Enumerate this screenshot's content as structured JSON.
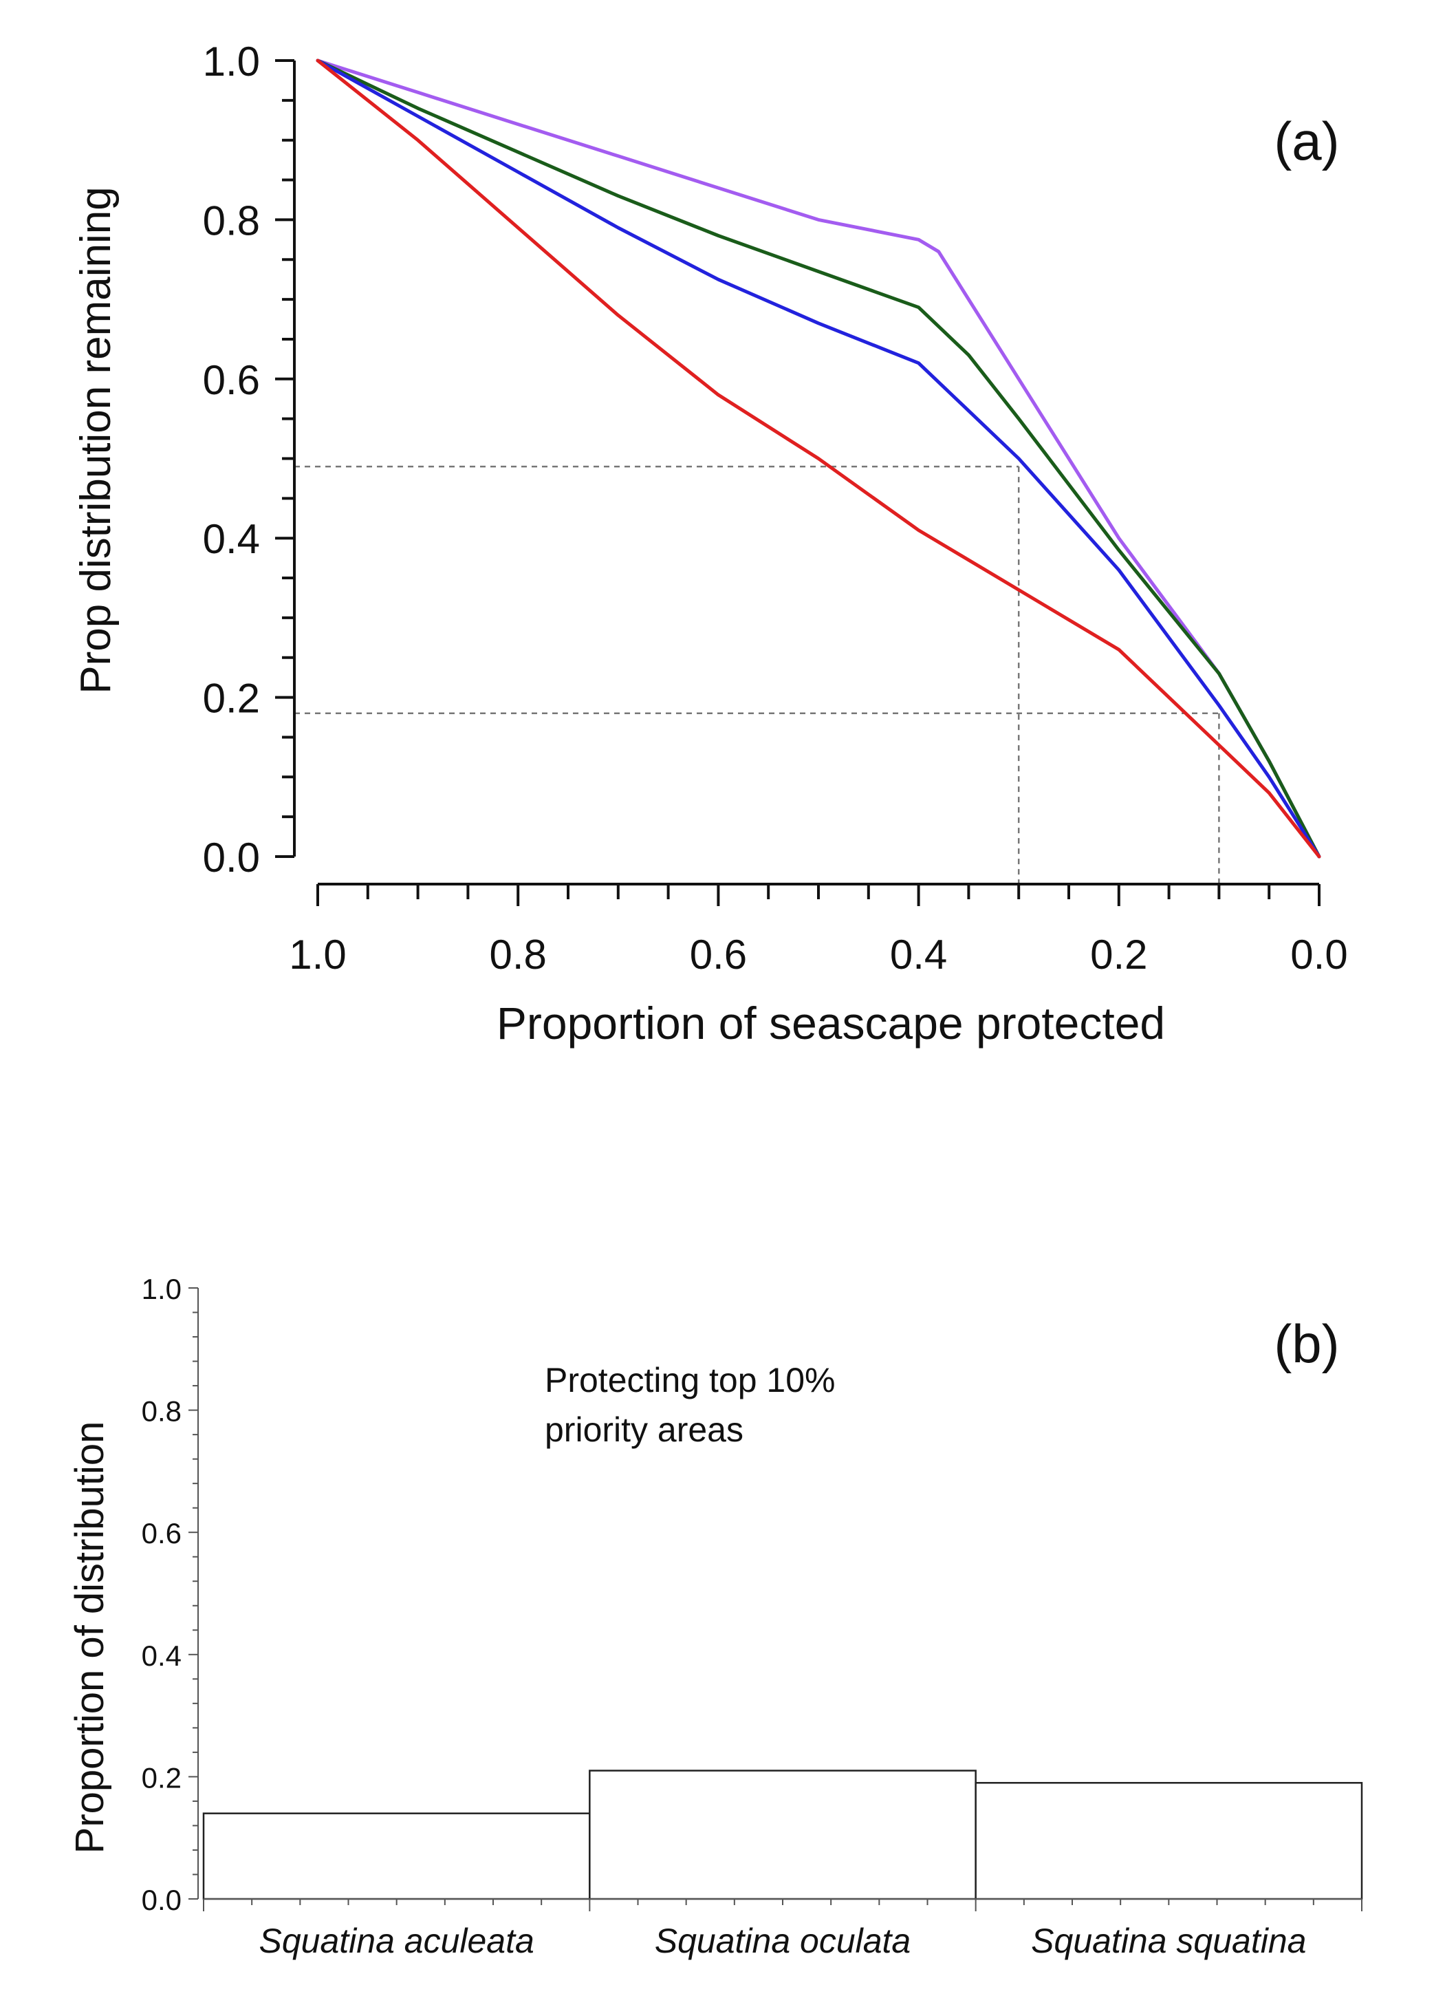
{
  "chart_data": [
    {
      "type": "line",
      "panel_label": "(a)",
      "xlabel": "Proportion of seascape protected",
      "ylabel": "Prop distribution remaining",
      "xlim": [
        1.0,
        0.0
      ],
      "ylim": [
        0.0,
        1.0
      ],
      "x_reversed": true,
      "xticks": [
        "1.0",
        "0.8",
        "0.6",
        "0.4",
        "0.2",
        "0.0"
      ],
      "yticks": [
        "0.0",
        "0.2",
        "0.4",
        "0.6",
        "0.8",
        "1.0"
      ],
      "series": [
        {
          "color": "#a35cf0",
          "x": [
            1.0,
            0.9,
            0.8,
            0.7,
            0.6,
            0.5,
            0.4,
            0.38,
            0.3,
            0.2,
            0.1,
            0.05,
            0.0
          ],
          "y": [
            1.0,
            0.96,
            0.92,
            0.88,
            0.84,
            0.8,
            0.775,
            0.76,
            0.6,
            0.4,
            0.23,
            0.12,
            0.0
          ]
        },
        {
          "color": "#1a5c1a",
          "x": [
            1.0,
            0.9,
            0.8,
            0.7,
            0.6,
            0.5,
            0.4,
            0.35,
            0.3,
            0.2,
            0.1,
            0.05,
            0.0
          ],
          "y": [
            1.0,
            0.94,
            0.885,
            0.83,
            0.78,
            0.735,
            0.69,
            0.63,
            0.55,
            0.385,
            0.23,
            0.12,
            0.0
          ]
        },
        {
          "color": "#2222dd",
          "x": [
            1.0,
            0.9,
            0.8,
            0.7,
            0.6,
            0.5,
            0.4,
            0.35,
            0.3,
            0.2,
            0.1,
            0.05,
            0.0
          ],
          "y": [
            1.0,
            0.93,
            0.86,
            0.79,
            0.725,
            0.67,
            0.62,
            0.56,
            0.5,
            0.36,
            0.19,
            0.1,
            0.0
          ]
        },
        {
          "color": "#e02020",
          "x": [
            1.0,
            0.9,
            0.8,
            0.7,
            0.6,
            0.5,
            0.45,
            0.4,
            0.3,
            0.2,
            0.1,
            0.05,
            0.0
          ],
          "y": [
            1.0,
            0.9,
            0.79,
            0.68,
            0.58,
            0.5,
            0.455,
            0.41,
            0.335,
            0.26,
            0.14,
            0.08,
            0.0
          ]
        }
      ],
      "reference_lines": [
        {
          "y": 0.49,
          "x_start": 1.0,
          "x_end": 0.3
        },
        {
          "x": 0.3,
          "y_start": 0.49,
          "y_end": 0.0
        },
        {
          "y": 0.18,
          "x_start": 1.0,
          "x_end": 0.1
        },
        {
          "x": 0.1,
          "y_start": 0.18,
          "y_end": 0.0
        }
      ]
    },
    {
      "type": "bar",
      "panel_label": "(b)",
      "ylabel": "Proportion of distribution",
      "annotation": [
        "Protecting top 10%",
        "priority areas"
      ],
      "categories": [
        "Squatina aculeata",
        "Squatina oculata",
        "Squatina squatina"
      ],
      "values": [
        0.14,
        0.21,
        0.19
      ],
      "ylim": [
        0.0,
        1.0
      ],
      "yticks": [
        "0.0",
        "0.2",
        "0.4",
        "0.6",
        "0.8",
        "1.0"
      ]
    }
  ]
}
